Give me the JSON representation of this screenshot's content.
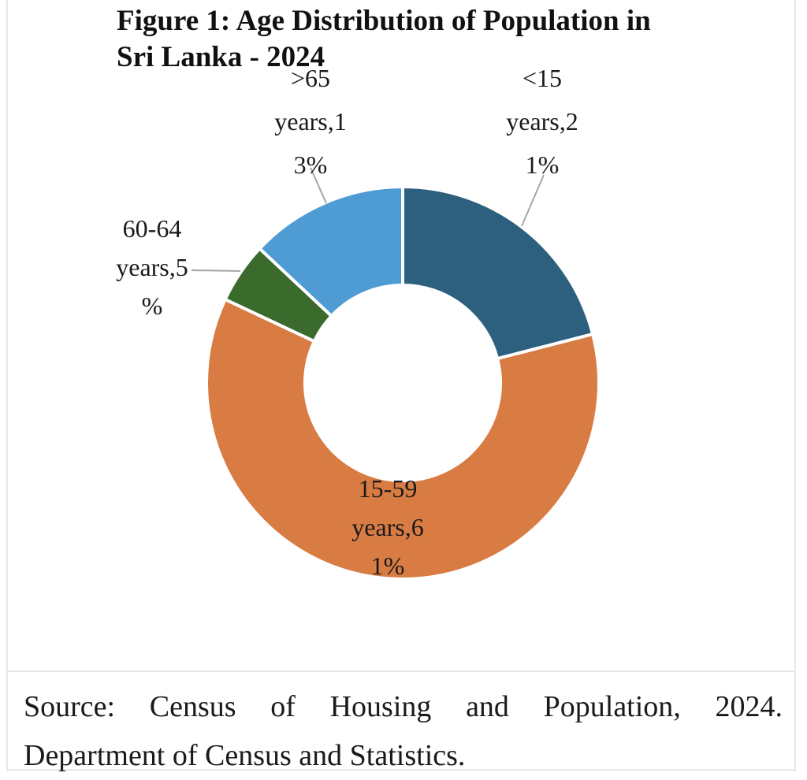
{
  "figure": {
    "title_line1": "Figure 1: Age Distribution of Population in",
    "title_line2": "Sri Lanka - 2024",
    "source": {
      "line1": "Source: Census of Housing and Population, 2024.",
      "line2": "Department of Census and Statistics.",
      "full": "Source: Census of Housing and Population, 2024. Department of Census and Statistics."
    }
  },
  "chart_data": {
    "type": "pie",
    "subtype": "donut",
    "title": "Figure 1: Age Distribution of Population in Sri Lanka - 2024",
    "categories": [
      "<15 years",
      "15-59 years",
      "60-64 years",
      ">65 years"
    ],
    "values": [
      21,
      61,
      5,
      13
    ],
    "unit": "%",
    "colors": [
      "#2D5F7F",
      "#D87C43",
      "#3A6B2D",
      "#4F9CD5"
    ],
    "data_labels": [
      [
        "<15",
        "years,2",
        "1%"
      ],
      [
        "15-59",
        "years,6",
        "1%"
      ],
      [
        "60-64",
        "years,5",
        "%"
      ],
      [
        ">65",
        "years,1",
        "3%"
      ]
    ],
    "data_labels_full": [
      "<15 years, 21%",
      "15-59 years, 61%",
      "60-64 years, 5%",
      ">65 years, 13%"
    ],
    "leader_line_color": "#a6a6a6",
    "start_angle_deg": 0,
    "direction": "clockwise",
    "legend": "none",
    "hole_ratio": 0.5
  }
}
